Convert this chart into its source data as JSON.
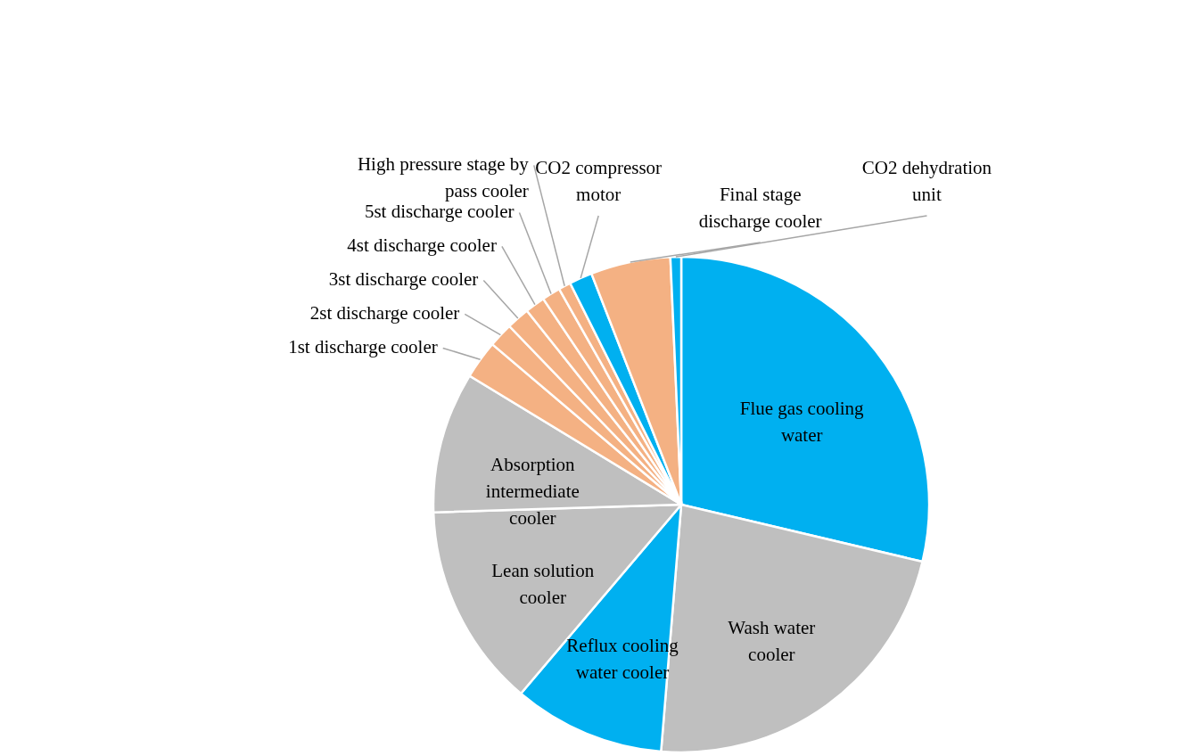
{
  "chart_data": {
    "type": "pie",
    "categories": [
      "Flue gas cooling water",
      "Wash water cooler",
      "Reflux cooling water cooler",
      "Lean solution cooler",
      "Absorption intermediate cooler",
      "1st discharge cooler",
      "2st discharge cooler",
      "3st discharge cooler",
      "4st discharge cooler",
      "5st discharge cooler",
      "High pressure stage by pass cooler",
      "CO2 compressor motor",
      "Final stage discharge cooler",
      "CO2 dehydration unit"
    ],
    "values": [
      28.7,
      22.6,
      9.9,
      13.3,
      9.2,
      2.5,
      1.6,
      1.5,
      1.3,
      1.2,
      0.8,
      1.5,
      5.2,
      0.7
    ],
    "colors": [
      "#00b0f0",
      "#bfbfbf",
      "#00b0f0",
      "#bfbfbf",
      "#bfbfbf",
      "#f4b183",
      "#f4b183",
      "#f4b183",
      "#f4b183",
      "#f4b183",
      "#f4b183",
      "#00b0f0",
      "#f4b183",
      "#00b0f0"
    ]
  }
}
